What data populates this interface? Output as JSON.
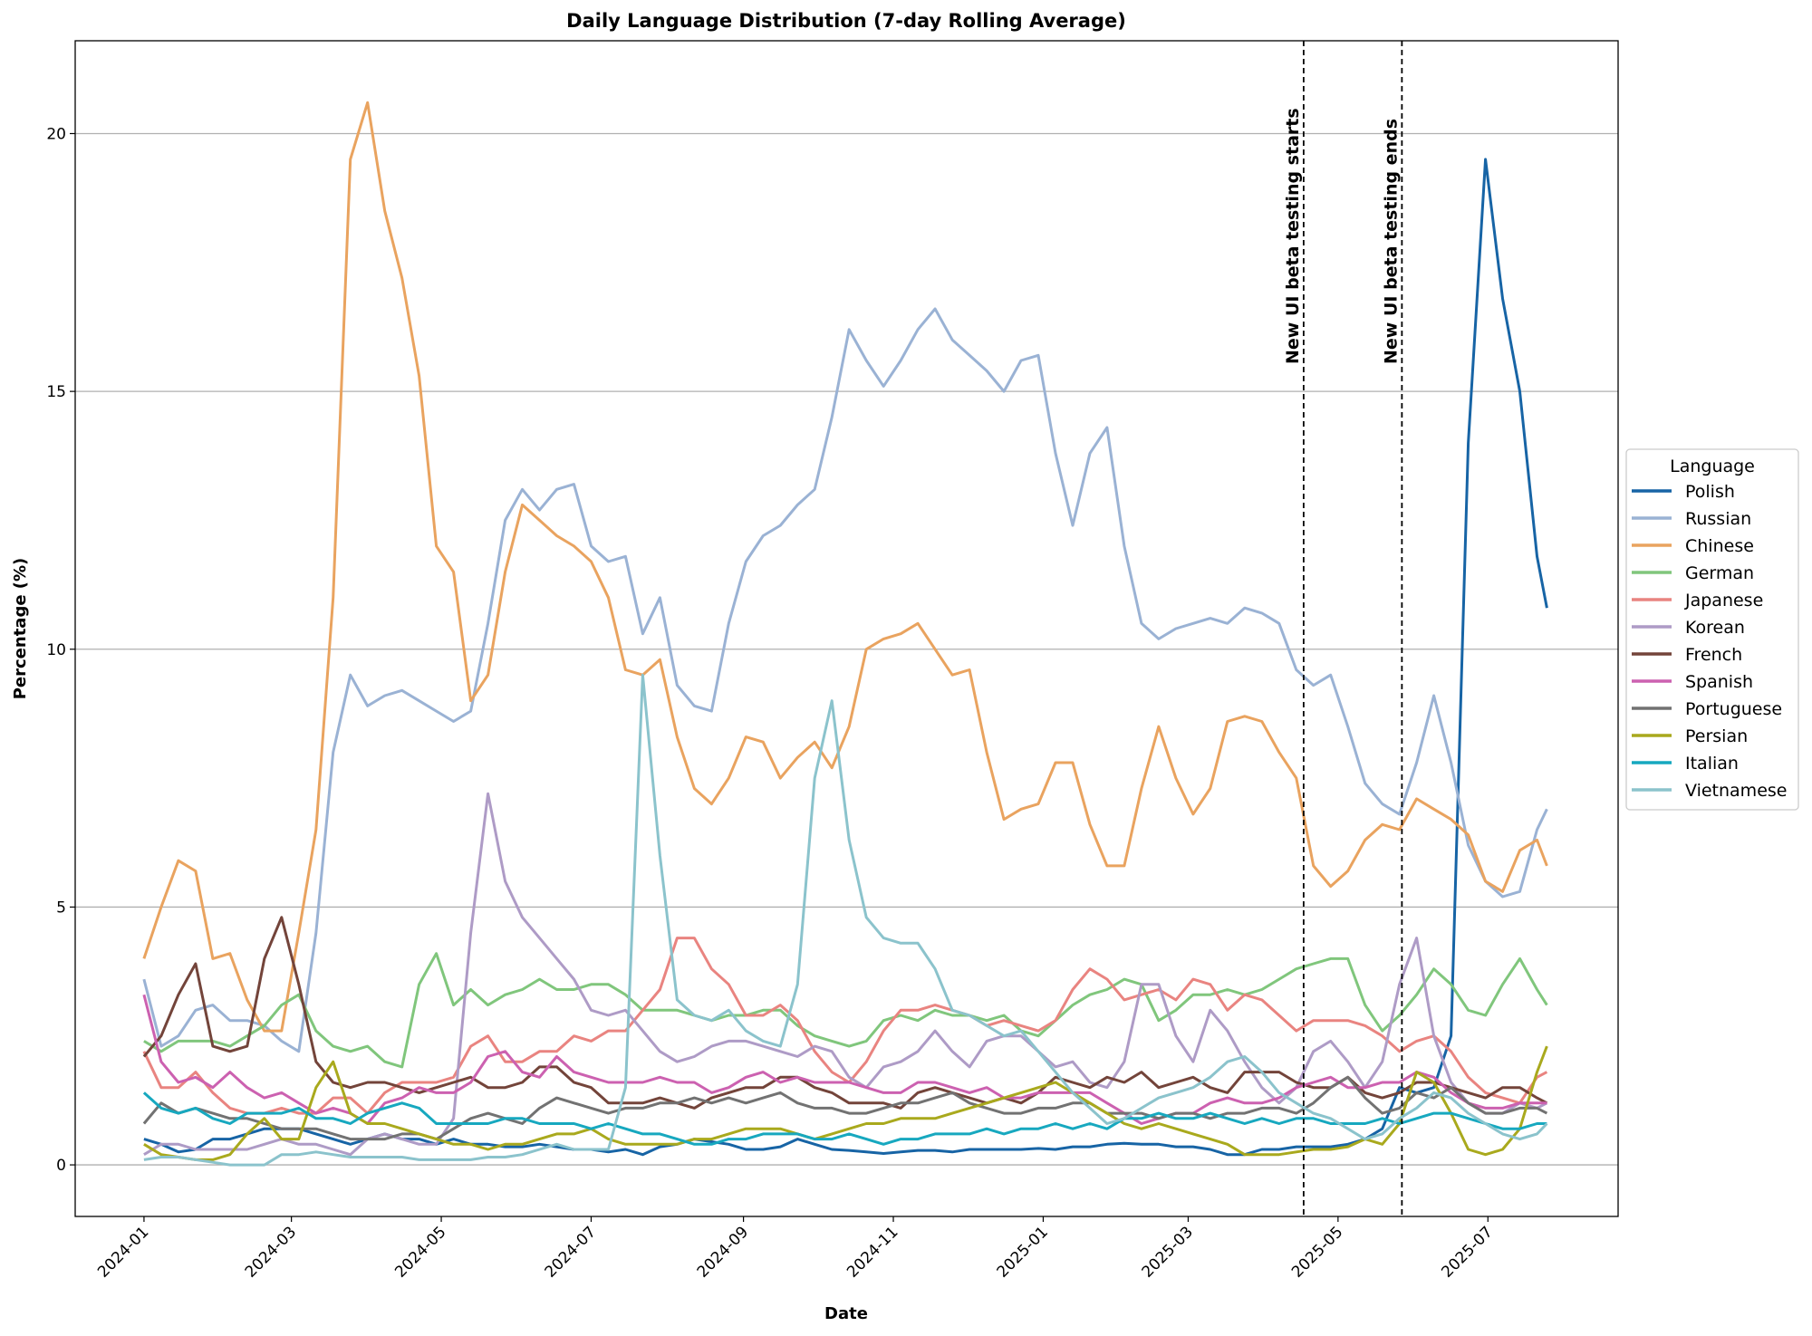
{
  "chart_data": {
    "type": "line",
    "title": "Daily Language Distribution (7-day Rolling Average)",
    "xlabel": "Date",
    "ylabel": "Percentage (%)",
    "xlim": [
      "2023-12-04",
      "2025-08-23"
    ],
    "ylim": [
      -1,
      21.8
    ],
    "grid": "y-axis horizontal lines",
    "legend": {
      "title": "Language",
      "placement": "right outside"
    },
    "x_ticks": [
      "2024-01",
      "2024-03",
      "2024-05",
      "2024-07",
      "2024-09",
      "2024-11",
      "2025-01",
      "2025-03",
      "2025-05",
      "2025-07"
    ],
    "y_ticks": [
      "0",
      "5",
      "10",
      "15",
      "20"
    ],
    "annotations": [
      {
        "date": "2025-04-17",
        "text": "New UI beta testing starts"
      },
      {
        "date": "2025-05-27",
        "text": "New UI beta testing ends"
      }
    ],
    "x": [
      "2024-01-01",
      "2024-01-08",
      "2024-01-15",
      "2024-01-22",
      "2024-01-29",
      "2024-02-05",
      "2024-02-12",
      "2024-02-19",
      "2024-02-26",
      "2024-03-04",
      "2024-03-11",
      "2024-03-18",
      "2024-03-25",
      "2024-04-01",
      "2024-04-08",
      "2024-04-15",
      "2024-04-22",
      "2024-04-29",
      "2024-05-06",
      "2024-05-13",
      "2024-05-20",
      "2024-05-27",
      "2024-06-03",
      "2024-06-10",
      "2024-06-17",
      "2024-06-24",
      "2024-07-01",
      "2024-07-08",
      "2024-07-15",
      "2024-07-22",
      "2024-07-29",
      "2024-08-05",
      "2024-08-12",
      "2024-08-19",
      "2024-08-26",
      "2024-09-02",
      "2024-09-09",
      "2024-09-16",
      "2024-09-23",
      "2024-09-30",
      "2024-10-07",
      "2024-10-14",
      "2024-10-21",
      "2024-10-28",
      "2024-11-04",
      "2024-11-11",
      "2024-11-18",
      "2024-11-25",
      "2024-12-02",
      "2024-12-09",
      "2024-12-16",
      "2024-12-23",
      "2024-12-30",
      "2025-01-06",
      "2025-01-13",
      "2025-01-20",
      "2025-01-27",
      "2025-02-03",
      "2025-02-10",
      "2025-02-17",
      "2025-02-24",
      "2025-03-03",
      "2025-03-10",
      "2025-03-17",
      "2025-03-24",
      "2025-03-31",
      "2025-04-07",
      "2025-04-14",
      "2025-04-21",
      "2025-04-28",
      "2025-05-05",
      "2025-05-12",
      "2025-05-19",
      "2025-05-26",
      "2025-06-02",
      "2025-06-09",
      "2025-06-16",
      "2025-06-23",
      "2025-06-30",
      "2025-07-07",
      "2025-07-14",
      "2025-07-21",
      "2025-07-25"
    ],
    "series": [
      {
        "name": "Polish",
        "color": "#1764a5",
        "values": [
          0.5,
          0.4,
          0.25,
          0.3,
          0.5,
          0.5,
          0.6,
          0.7,
          0.7,
          0.7,
          0.6,
          0.5,
          0.4,
          0.5,
          0.6,
          0.5,
          0.5,
          0.4,
          0.5,
          0.4,
          0.4,
          0.35,
          0.35,
          0.4,
          0.35,
          0.3,
          0.3,
          0.25,
          0.3,
          0.2,
          0.35,
          0.4,
          0.5,
          0.45,
          0.4,
          0.3,
          0.3,
          0.35,
          0.5,
          0.4,
          0.3,
          0.28,
          0.25,
          0.22,
          0.25,
          0.28,
          0.28,
          0.25,
          0.3,
          0.3,
          0.3,
          0.3,
          0.32,
          0.3,
          0.35,
          0.35,
          0.4,
          0.42,
          0.4,
          0.4,
          0.35,
          0.35,
          0.3,
          0.2,
          0.2,
          0.3,
          0.3,
          0.35,
          0.35,
          0.35,
          0.4,
          0.5,
          0.7,
          1.5,
          1.4,
          1.5,
          2.5,
          14.0,
          19.5,
          16.8,
          15.0,
          11.8,
          10.8
        ]
      },
      {
        "name": "Russian",
        "color": "#9ab2d4",
        "values": [
          3.6,
          2.3,
          2.5,
          3.0,
          3.1,
          2.8,
          2.8,
          2.7,
          2.4,
          2.2,
          4.5,
          8.0,
          9.5,
          8.9,
          9.1,
          9.2,
          9.0,
          8.8,
          8.6,
          8.8,
          10.5,
          12.5,
          13.1,
          12.7,
          13.1,
          13.2,
          12.0,
          11.7,
          11.8,
          10.3,
          11.0,
          9.3,
          8.9,
          8.8,
          10.5,
          11.7,
          12.2,
          12.4,
          12.8,
          13.1,
          14.5,
          16.2,
          15.6,
          15.1,
          15.6,
          16.2,
          16.6,
          16.0,
          15.7,
          15.4,
          15.0,
          15.6,
          15.7,
          13.8,
          12.4,
          13.8,
          14.3,
          12.0,
          10.5,
          10.2,
          10.4,
          10.5,
          10.6,
          10.5,
          10.8,
          10.7,
          10.5,
          9.6,
          9.3,
          9.5,
          8.5,
          7.4,
          7.0,
          6.8,
          7.8,
          9.1,
          7.8,
          6.2,
          5.5,
          5.2,
          5.3,
          6.5,
          6.9
        ]
      },
      {
        "name": "Chinese",
        "color": "#e9a35f",
        "values": [
          4.0,
          5.0,
          5.9,
          5.7,
          4.0,
          4.1,
          3.2,
          2.6,
          2.6,
          4.5,
          6.5,
          11.0,
          19.5,
          20.6,
          18.5,
          17.2,
          15.3,
          12.0,
          11.5,
          9.0,
          9.5,
          11.5,
          12.8,
          12.5,
          12.2,
          12.0,
          11.7,
          11.0,
          9.6,
          9.5,
          9.8,
          8.3,
          7.3,
          7.0,
          7.5,
          8.3,
          8.2,
          7.5,
          7.9,
          8.2,
          7.7,
          8.5,
          10.0,
          10.2,
          10.3,
          10.5,
          10.0,
          9.5,
          9.6,
          8.0,
          6.7,
          6.9,
          7.0,
          7.8,
          7.8,
          6.6,
          5.8,
          5.8,
          7.3,
          8.5,
          7.5,
          6.8,
          7.3,
          8.6,
          8.7,
          8.6,
          8.0,
          7.5,
          5.8,
          5.4,
          5.7,
          6.3,
          6.6,
          6.5,
          7.1,
          6.9,
          6.7,
          6.4,
          5.5,
          5.3,
          6.1,
          6.3,
          5.8
        ]
      },
      {
        "name": "German",
        "color": "#80c67c",
        "values": [
          2.4,
          2.2,
          2.4,
          2.4,
          2.4,
          2.3,
          2.5,
          2.7,
          3.1,
          3.3,
          2.6,
          2.3,
          2.2,
          2.3,
          2.0,
          1.9,
          3.5,
          4.1,
          3.1,
          3.4,
          3.1,
          3.3,
          3.4,
          3.6,
          3.4,
          3.4,
          3.5,
          3.5,
          3.3,
          3.0,
          3.0,
          3.0,
          2.9,
          2.8,
          2.9,
          2.9,
          3.0,
          3.0,
          2.7,
          2.5,
          2.4,
          2.3,
          2.4,
          2.8,
          2.9,
          2.8,
          3.0,
          2.9,
          2.9,
          2.8,
          2.9,
          2.6,
          2.5,
          2.8,
          3.1,
          3.3,
          3.4,
          3.6,
          3.5,
          2.8,
          3.0,
          3.3,
          3.3,
          3.4,
          3.3,
          3.4,
          3.6,
          3.8,
          3.9,
          4.0,
          4.0,
          3.1,
          2.6,
          2.9,
          3.3,
          3.8,
          3.5,
          3.0,
          2.9,
          3.5,
          4.0,
          3.4,
          3.1
        ]
      },
      {
        "name": "Japanese",
        "color": "#e98480",
        "values": [
          2.2,
          1.5,
          1.5,
          1.8,
          1.4,
          1.1,
          1.0,
          1.0,
          1.1,
          1.0,
          1.0,
          1.3,
          1.3,
          1.0,
          1.4,
          1.6,
          1.6,
          1.6,
          1.7,
          2.3,
          2.5,
          2.0,
          2.0,
          2.2,
          2.2,
          2.5,
          2.4,
          2.6,
          2.6,
          3.0,
          3.4,
          4.4,
          4.4,
          3.8,
          3.5,
          2.9,
          2.9,
          3.1,
          2.8,
          2.2,
          1.8,
          1.6,
          2.0,
          2.6,
          3.0,
          3.0,
          3.1,
          3.0,
          2.9,
          2.7,
          2.8,
          2.7,
          2.6,
          2.8,
          3.4,
          3.8,
          3.6,
          3.2,
          3.3,
          3.4,
          3.2,
          3.6,
          3.5,
          3.0,
          3.3,
          3.2,
          2.9,
          2.6,
          2.8,
          2.8,
          2.8,
          2.7,
          2.5,
          2.2,
          2.4,
          2.5,
          2.2,
          1.7,
          1.4,
          1.3,
          1.2,
          1.7,
          1.8
        ]
      },
      {
        "name": "Korean",
        "color": "#ae9bc6",
        "values": [
          0.2,
          0.4,
          0.4,
          0.3,
          0.3,
          0.3,
          0.3,
          0.4,
          0.5,
          0.4,
          0.4,
          0.3,
          0.2,
          0.5,
          0.6,
          0.5,
          0.4,
          0.4,
          0.9,
          4.5,
          7.2,
          5.5,
          4.8,
          4.4,
          4.0,
          3.6,
          3.0,
          2.9,
          3.0,
          2.6,
          2.2,
          2.0,
          2.1,
          2.3,
          2.4,
          2.4,
          2.3,
          2.2,
          2.1,
          2.3,
          2.2,
          1.7,
          1.5,
          1.9,
          2.0,
          2.2,
          2.6,
          2.2,
          1.9,
          2.4,
          2.5,
          2.5,
          2.2,
          1.9,
          2.0,
          1.6,
          1.5,
          2.0,
          3.5,
          3.5,
          2.5,
          2.0,
          3.0,
          2.6,
          2.0,
          1.5,
          1.2,
          1.5,
          2.2,
          2.4,
          2.0,
          1.5,
          2.0,
          3.5,
          4.4,
          2.5,
          1.6,
          1.2,
          1.0,
          1.0,
          1.2,
          1.1,
          1.2
        ]
      },
      {
        "name": "French",
        "color": "#73443a",
        "values": [
          2.1,
          2.5,
          3.3,
          3.9,
          2.3,
          2.2,
          2.3,
          4.0,
          4.8,
          3.5,
          2.0,
          1.6,
          1.5,
          1.6,
          1.6,
          1.5,
          1.4,
          1.5,
          1.6,
          1.7,
          1.5,
          1.5,
          1.6,
          1.9,
          1.9,
          1.6,
          1.5,
          1.2,
          1.2,
          1.2,
          1.3,
          1.2,
          1.1,
          1.3,
          1.4,
          1.5,
          1.5,
          1.7,
          1.7,
          1.5,
          1.4,
          1.2,
          1.2,
          1.2,
          1.1,
          1.4,
          1.5,
          1.4,
          1.3,
          1.2,
          1.3,
          1.2,
          1.4,
          1.7,
          1.6,
          1.5,
          1.7,
          1.6,
          1.8,
          1.5,
          1.6,
          1.7,
          1.5,
          1.4,
          1.8,
          1.8,
          1.8,
          1.6,
          1.5,
          1.5,
          1.7,
          1.4,
          1.3,
          1.4,
          1.6,
          1.6,
          1.5,
          1.4,
          1.3,
          1.5,
          1.5,
          1.3,
          1.2
        ]
      },
      {
        "name": "Spanish",
        "color": "#cc61b0",
        "values": [
          3.3,
          2.0,
          1.6,
          1.7,
          1.5,
          1.8,
          1.5,
          1.3,
          1.4,
          1.2,
          1.0,
          1.1,
          1.0,
          0.8,
          1.2,
          1.3,
          1.5,
          1.4,
          1.4,
          1.6,
          2.1,
          2.2,
          1.8,
          1.7,
          2.1,
          1.8,
          1.7,
          1.6,
          1.6,
          1.6,
          1.7,
          1.6,
          1.6,
          1.4,
          1.5,
          1.7,
          1.8,
          1.6,
          1.7,
          1.6,
          1.6,
          1.6,
          1.5,
          1.4,
          1.4,
          1.6,
          1.6,
          1.5,
          1.4,
          1.5,
          1.3,
          1.3,
          1.4,
          1.4,
          1.4,
          1.4,
          1.2,
          1.0,
          0.8,
          0.9,
          1.0,
          1.0,
          1.2,
          1.3,
          1.2,
          1.2,
          1.3,
          1.5,
          1.6,
          1.7,
          1.5,
          1.5,
          1.6,
          1.6,
          1.8,
          1.7,
          1.4,
          1.2,
          1.1,
          1.1,
          1.2,
          1.2,
          1.2
        ]
      },
      {
        "name": "Portuguese",
        "color": "#727272",
        "values": [
          0.8,
          1.2,
          1.0,
          1.1,
          1.0,
          0.9,
          0.9,
          0.8,
          0.7,
          0.7,
          0.7,
          0.6,
          0.5,
          0.5,
          0.5,
          0.6,
          0.6,
          0.5,
          0.7,
          0.9,
          1.0,
          0.9,
          0.8,
          1.1,
          1.3,
          1.2,
          1.1,
          1.0,
          1.1,
          1.1,
          1.2,
          1.2,
          1.3,
          1.2,
          1.3,
          1.2,
          1.3,
          1.4,
          1.2,
          1.1,
          1.1,
          1.0,
          1.0,
          1.1,
          1.2,
          1.2,
          1.3,
          1.4,
          1.2,
          1.1,
          1.0,
          1.0,
          1.1,
          1.1,
          1.2,
          1.2,
          1.0,
          1.0,
          1.0,
          0.9,
          1.0,
          1.0,
          0.9,
          1.0,
          1.0,
          1.1,
          1.1,
          1.0,
          1.2,
          1.5,
          1.7,
          1.3,
          1.0,
          1.1,
          1.4,
          1.3,
          1.5,
          1.2,
          1.0,
          1.0,
          1.1,
          1.1,
          1.0
        ]
      },
      {
        "name": "Persian",
        "color": "#a9a91d",
        "values": [
          0.4,
          0.2,
          0.15,
          0.1,
          0.1,
          0.2,
          0.6,
          0.9,
          0.5,
          0.5,
          1.5,
          2.0,
          1.0,
          0.8,
          0.8,
          0.7,
          0.6,
          0.5,
          0.4,
          0.4,
          0.3,
          0.4,
          0.4,
          0.5,
          0.6,
          0.6,
          0.7,
          0.5,
          0.4,
          0.4,
          0.4,
          0.4,
          0.5,
          0.5,
          0.6,
          0.7,
          0.7,
          0.7,
          0.6,
          0.5,
          0.6,
          0.7,
          0.8,
          0.8,
          0.9,
          0.9,
          0.9,
          1.0,
          1.1,
          1.2,
          1.3,
          1.4,
          1.5,
          1.6,
          1.4,
          1.2,
          1.0,
          0.8,
          0.7,
          0.8,
          0.7,
          0.6,
          0.5,
          0.4,
          0.2,
          0.2,
          0.2,
          0.25,
          0.3,
          0.3,
          0.35,
          0.5,
          0.4,
          0.8,
          1.8,
          1.6,
          1.0,
          0.3,
          0.2,
          0.3,
          0.7,
          1.8,
          2.3
        ]
      },
      {
        "name": "Italian",
        "color": "#17a8bf",
        "values": [
          1.4,
          1.1,
          1.0,
          1.1,
          0.9,
          0.8,
          1.0,
          1.0,
          1.0,
          1.1,
          0.9,
          0.9,
          0.8,
          1.0,
          1.1,
          1.2,
          1.1,
          0.8,
          0.8,
          0.8,
          0.8,
          0.9,
          0.9,
          0.8,
          0.8,
          0.8,
          0.7,
          0.8,
          0.7,
          0.6,
          0.6,
          0.5,
          0.4,
          0.4,
          0.5,
          0.5,
          0.6,
          0.6,
          0.6,
          0.5,
          0.5,
          0.6,
          0.5,
          0.4,
          0.5,
          0.5,
          0.6,
          0.6,
          0.6,
          0.7,
          0.6,
          0.7,
          0.7,
          0.8,
          0.7,
          0.8,
          0.7,
          0.9,
          0.9,
          1.0,
          0.9,
          0.9,
          1.0,
          0.9,
          0.8,
          0.9,
          0.8,
          0.9,
          0.9,
          0.8,
          0.8,
          0.8,
          0.9,
          0.8,
          0.9,
          1.0,
          1.0,
          0.9,
          0.8,
          0.7,
          0.7,
          0.8,
          0.8
        ]
      },
      {
        "name": "Vietnamese",
        "color": "#8bc3cc",
        "values": [
          0.1,
          0.15,
          0.15,
          0.1,
          0.05,
          0.0,
          0.0,
          0.0,
          0.2,
          0.2,
          0.25,
          0.2,
          0.15,
          0.15,
          0.15,
          0.15,
          0.1,
          0.1,
          0.1,
          0.1,
          0.15,
          0.15,
          0.2,
          0.3,
          0.4,
          0.3,
          0.3,
          0.3,
          1.5,
          9.5,
          6.0,
          3.2,
          2.9,
          2.8,
          3.0,
          2.6,
          2.4,
          2.3,
          3.5,
          7.5,
          9.0,
          6.3,
          4.8,
          4.4,
          4.3,
          4.3,
          3.8,
          3.0,
          2.9,
          2.7,
          2.5,
          2.6,
          2.2,
          1.8,
          1.4,
          1.1,
          0.8,
          0.9,
          1.1,
          1.3,
          1.4,
          1.5,
          1.7,
          2.0,
          2.1,
          1.8,
          1.4,
          1.2,
          1.0,
          0.9,
          0.7,
          0.5,
          0.6,
          0.9,
          1.1,
          1.4,
          1.3,
          1.0,
          0.8,
          0.6,
          0.5,
          0.6,
          0.8
        ]
      }
    ]
  }
}
